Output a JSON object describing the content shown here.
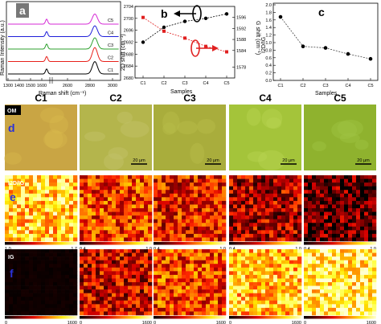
{
  "colors": {
    "C1": "#000000",
    "C2": "#e8211b",
    "C3": "#2ca02c",
    "C4": "#1f1fd9",
    "C5": "#d62ad6",
    "black_series": "#000000",
    "red_series": "#e02020",
    "panel_label_blue": "#2a32d8"
  },
  "panel_labels": {
    "a": "a",
    "b": "b",
    "c": "c",
    "d": "d",
    "e": "e",
    "f": "f"
  },
  "column_headers": [
    "C1",
    "C2",
    "C3",
    "C4",
    "C5"
  ],
  "row_labels": {
    "om": "OM",
    "ratio": "I2D/IG",
    "ig": "IG"
  },
  "scale_bar": "20 μm",
  "colorbars": {
    "ratio_min": [
      "1.0",
      "0.4",
      "0.4",
      "0.4",
      "0.4"
    ],
    "ratio_max": [
      "1.7",
      "1.0",
      "1.0",
      "1.0",
      "1.0"
    ],
    "ig_min": [
      "0",
      "0",
      "0",
      "0",
      "0"
    ],
    "ig_max": [
      "1600",
      "1600",
      "1600",
      "1600",
      "1600"
    ]
  },
  "chart_data": [
    {
      "type": "line",
      "panel": "a",
      "xlabel": "Raman shift (cm⁻¹)",
      "ylabel": "Raman Intensity (a.u.)",
      "xticks": [
        "1300",
        "1400",
        "1500",
        "1600",
        "2600",
        "2800",
        "3000"
      ],
      "series": [
        {
          "name": "C1",
          "offset": 0,
          "g_peak": 0.22,
          "d2_peak": 0.55
        },
        {
          "name": "C2",
          "offset": 1,
          "g_peak": 0.22,
          "d2_peak": 0.62
        },
        {
          "name": "C3",
          "offset": 2,
          "g_peak": 0.22,
          "d2_peak": 0.5
        },
        {
          "name": "C4",
          "offset": 3,
          "g_peak": 0.22,
          "d2_peak": 0.48
        },
        {
          "name": "C5",
          "offset": 4,
          "g_peak": 0.22,
          "d2_peak": 0.45
        }
      ]
    },
    {
      "type": "line",
      "panel": "b",
      "categories": [
        "C1",
        "C2",
        "C3",
        "C4",
        "C5"
      ],
      "xlabel": "Samples",
      "ylabel": "2D shift (cm⁻¹)",
      "ylabel_right": "G shift (cm⁻¹)",
      "ylim": [
        2680,
        2704
      ],
      "yticks": [
        "2680",
        "2684",
        "2688",
        "2692",
        "2696",
        "2700",
        "2704"
      ],
      "ylim_right": [
        1574,
        1600
      ],
      "yticks_right": [
        "1578",
        "1584",
        "1588",
        "1592",
        "1596"
      ],
      "series": [
        {
          "axis": "left",
          "values": [
            2692,
            2697,
            2699,
            2700,
            2701.5
          ]
        },
        {
          "axis": "right",
          "values": [
            1596,
            1591,
            1588.5,
            1585.5,
            1583.5
          ]
        }
      ]
    },
    {
      "type": "line",
      "panel": "c",
      "categories": [
        "C1",
        "C2",
        "C3",
        "C4",
        "C5"
      ],
      "xlabel": "Samples",
      "ylabel": "I2D/IG",
      "ylim": [
        0.0,
        2.0
      ],
      "yticks": [
        "0.0",
        "0.2",
        "0.4",
        "0.6",
        "0.8",
        "1.0",
        "1.2",
        "1.4",
        "1.6",
        "1.8",
        "2.0"
      ],
      "series": [
        {
          "values": [
            1.68,
            0.9,
            0.86,
            0.7,
            0.57
          ]
        }
      ]
    }
  ],
  "maps": {
    "om_colors": [
      "#c9a544",
      "#b4b54c",
      "#a9ad3c",
      "#a4c43a",
      "#8fb22e"
    ],
    "om_spots": [
      "#d7b84c",
      "#c4c46a",
      "#b8bc4a",
      "#b8d452",
      "#a0c442"
    ],
    "ratio_levels": [
      0.75,
      0.5,
      0.42,
      0.3,
      0.18
    ],
    "ig_levels": [
      0.02,
      0.35,
      0.5,
      0.72,
      0.85
    ]
  }
}
